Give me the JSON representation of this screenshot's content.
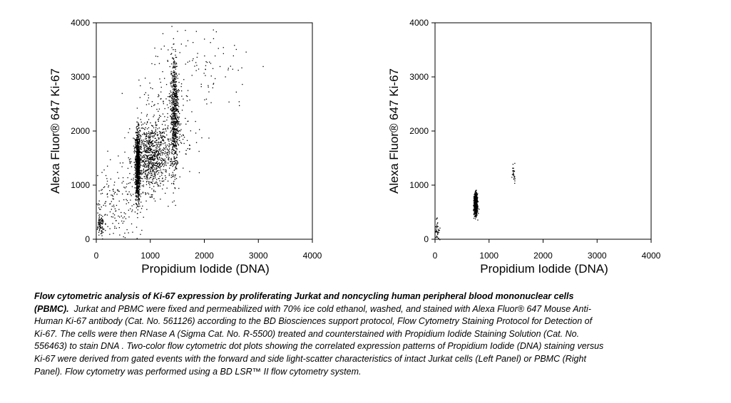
{
  "chart_data": [
    {
      "type": "scatter",
      "panel": "Left Panel",
      "xlabel": "Propidium Iodide (DNA)",
      "ylabel": "Alexa Fluor® 647 Ki-67",
      "xlim": [
        0,
        4000
      ],
      "ylim": [
        0,
        4000
      ],
      "xticks": [
        "0",
        "1000",
        "2000",
        "3000",
        "4000"
      ],
      "yticks": [
        "0",
        "1000",
        "2000",
        "3000",
        "4000"
      ],
      "grid": false,
      "populations": [
        {
          "name": "",
          "x_center": 760,
          "y_center": 1350,
          "x_sd": 22,
          "y_sd": 330,
          "count": 900
        },
        {
          "name": "",
          "x_center": 1000,
          "y_center": 1500,
          "x_sd": 160,
          "y_sd": 300,
          "count": 750
        },
        {
          "name": "",
          "x_center": 1440,
          "y_center": 2350,
          "x_sd": 35,
          "y_sd": 550,
          "count": 650
        },
        {
          "name": "",
          "x_center": 1300,
          "y_center": 2000,
          "x_sd": 250,
          "y_sd": 450,
          "count": 250
        },
        {
          "name": "",
          "x_center": 300,
          "y_center": 650,
          "x_sd": 220,
          "y_sd": 400,
          "count": 180
        },
        {
          "name": "",
          "x_center": 1900,
          "y_center": 3100,
          "x_sd": 500,
          "y_sd": 450,
          "count": 120
        },
        {
          "name": "",
          "x_center": 70,
          "y_center": 250,
          "x_sd": 40,
          "y_sd": 120,
          "count": 80
        }
      ]
    },
    {
      "type": "scatter",
      "panel": "Right Panel",
      "xlabel": "Propidium Iodide (DNA)",
      "ylabel": "Alexa Fluor® 647 Ki-67",
      "xlim": [
        0,
        4000
      ],
      "ylim": [
        0,
        4000
      ],
      "xticks": [
        "0",
        "1000",
        "2000",
        "3000",
        "4000"
      ],
      "yticks": [
        "0",
        "1000",
        "2000",
        "3000",
        "4000"
      ],
      "grid": false,
      "populations": [
        {
          "name": "",
          "x_center": 745,
          "y_center": 650,
          "x_sd": 15,
          "y_sd": 95,
          "count": 700
        },
        {
          "name": "",
          "x_center": 1450,
          "y_center": 1250,
          "x_sd": 20,
          "y_sd": 90,
          "count": 25
        },
        {
          "name": "",
          "x_center": 35,
          "y_center": 170,
          "x_sd": 20,
          "y_sd": 120,
          "count": 40
        }
      ]
    }
  ],
  "caption": {
    "title": "Flow cytometric analysis of Ki-67 expression by proliferating Jurkat and noncycling human peripheral blood mononuclear cells (PBMC).",
    "body": "Jurkat and PBMC were fixed and permeabilized with 70% ice cold ethanol, washed, and stained with Alexa Fluor® 647 Mouse Anti-Human Ki-67 antibody (Cat. No. 561126) according to the BD Biosciences support protocol, Flow Cytometry Staining Protocol for Detection of Ki-67. The cells were then RNase A (Sigma Cat. No. R-5500) treated and counterstained with Propidium Iodide Staining Solution (Cat. No. 556463) to stain DNA . Two-color flow cytometric dot plots showing the correlated expression patterns of Propidium Iodide (DNA) staining versus Ki-67 were derived from gated events with the forward and side light-scatter characteristics of intact Jurkat cells (Left Panel) or PBMC (Right Panel). Flow cytometry was performed using a BD LSR™ II flow cytometry system."
  }
}
